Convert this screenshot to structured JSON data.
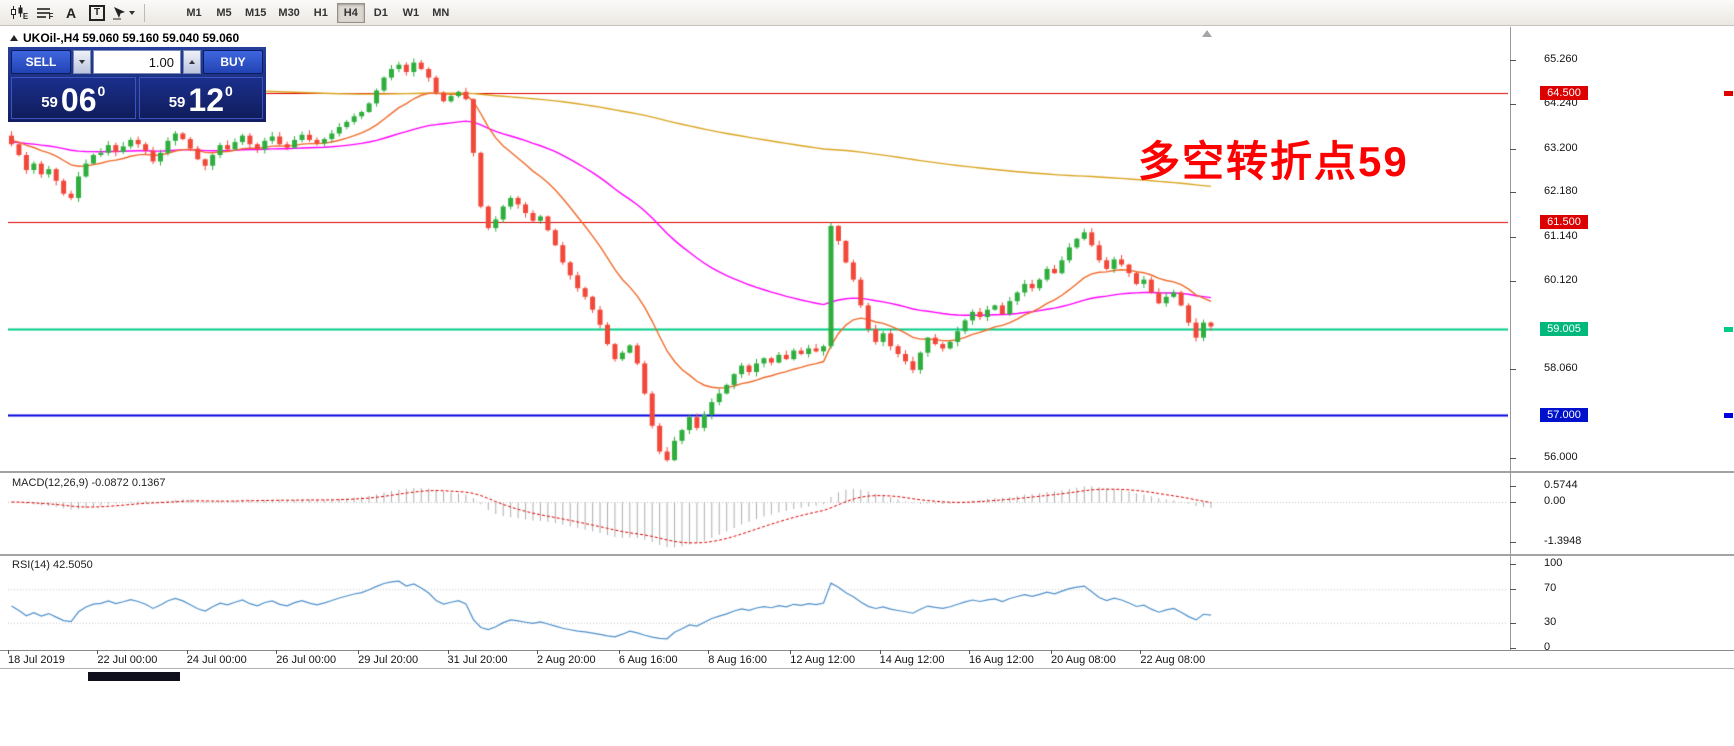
{
  "toolbar": {
    "timeframes": [
      "M1",
      "M5",
      "M15",
      "M30",
      "H1",
      "H4",
      "D1",
      "W1",
      "MN"
    ],
    "active_timeframe": "H4",
    "letters": {
      "e": "E",
      "f": "F",
      "a": "A",
      "t": "T"
    }
  },
  "chart": {
    "header": "UKOil-,H4  59.060 59.160 59.040 59.060",
    "symbol": "UKOil-",
    "timeframe": "H4",
    "annotation": {
      "text": "多空转折点59",
      "color": "#ff0000"
    },
    "trade_panel": {
      "sell_label": "SELL",
      "buy_label": "BUY",
      "volume": "1.00",
      "sell_price": {
        "small": "59",
        "big": "06",
        "sup": "0"
      },
      "buy_price": {
        "small": "59",
        "big": "12",
        "sup": "0"
      }
    }
  },
  "price_axis": {
    "labels": [
      "65.260",
      "64.240",
      "63.200",
      "62.180",
      "61.140",
      "60.120",
      "58.060",
      "56.000"
    ],
    "badges": [
      {
        "price": 64.5,
        "label": "64.500",
        "color": "#dd0000"
      },
      {
        "price": 61.5,
        "label": "61.500",
        "color": "#dd0000"
      },
      {
        "price": 59.005,
        "label": "59.005",
        "color": "#00b87c"
      },
      {
        "price": 57.0,
        "label": "57.000",
        "color": "#0011cc"
      }
    ],
    "edge_marks": [
      {
        "price": 64.5,
        "color": "#e00000"
      },
      {
        "price": 59.005,
        "color": "#00cc84"
      },
      {
        "price": 57.0,
        "color": "#0000e0"
      }
    ]
  },
  "macd_panel": {
    "label": "MACD(12,26,9) -0.0872 0.1367",
    "axis": [
      "0.5744",
      "0.00",
      "-1.3948"
    ]
  },
  "rsi_panel": {
    "label": "RSI(14) 42.5050",
    "axis": [
      "100",
      "70",
      "30",
      "0"
    ]
  },
  "time_axis": [
    {
      "i": 0,
      "t": "18 Jul 2019"
    },
    {
      "i": 12,
      "t": "22 Jul 00:00"
    },
    {
      "i": 24,
      "t": "24 Jul 00:00"
    },
    {
      "i": 36,
      "t": "26 Jul 00:00"
    },
    {
      "i": 47,
      "t": "29 Jul 20:00"
    },
    {
      "i": 59,
      "t": "31 Jul 20:00"
    },
    {
      "i": 71,
      "t": "2 Aug 20:00"
    },
    {
      "i": 82,
      "t": "6 Aug 16:00"
    },
    {
      "i": 94,
      "t": "8 Aug 16:00"
    },
    {
      "i": 105,
      "t": "12 Aug 12:00"
    },
    {
      "i": 117,
      "t": "14 Aug 12:00"
    },
    {
      "i": 129,
      "t": "16 Aug 12:00"
    },
    {
      "i": 140,
      "t": "20 Aug 08:00"
    },
    {
      "i": 152,
      "t": "22 Aug 08:00"
    }
  ],
  "chart_data": {
    "type": "candlestick",
    "symbol": "UKOil-",
    "timeframe": "H4",
    "quote": {
      "open": 59.06,
      "high": 59.16,
      "low": 59.04,
      "close": 59.06,
      "bid": 59.06,
      "ask": 59.12
    },
    "ylim": [
      55.6,
      66.0
    ],
    "first_open": 63.5,
    "closes": [
      63.3,
      63.05,
      62.7,
      62.85,
      62.6,
      62.72,
      62.45,
      62.15,
      62.05,
      62.55,
      62.85,
      63.05,
      63.1,
      63.28,
      63.12,
      63.25,
      63.4,
      63.3,
      63.15,
      62.9,
      63.1,
      63.38,
      63.55,
      63.42,
      63.2,
      62.95,
      62.8,
      63.05,
      63.28,
      63.18,
      63.35,
      63.5,
      63.3,
      63.18,
      63.38,
      63.48,
      63.3,
      63.22,
      63.4,
      63.52,
      63.4,
      63.32,
      63.42,
      63.55,
      63.7,
      63.82,
      63.95,
      64.05,
      64.25,
      64.55,
      64.85,
      65.05,
      65.15,
      64.98,
      65.2,
      65.05,
      64.85,
      64.5,
      64.3,
      64.42,
      64.52,
      64.35,
      63.1,
      61.85,
      61.35,
      61.55,
      61.85,
      62.05,
      61.9,
      61.7,
      61.52,
      61.62,
      61.3,
      60.95,
      60.55,
      60.25,
      59.95,
      59.75,
      59.45,
      59.1,
      58.65,
      58.3,
      58.45,
      58.62,
      58.2,
      57.5,
      56.75,
      56.15,
      55.95,
      56.4,
      56.65,
      56.95,
      56.7,
      57.0,
      57.3,
      57.5,
      57.7,
      57.95,
      58.15,
      58.0,
      58.2,
      58.32,
      58.22,
      58.4,
      58.3,
      58.5,
      58.42,
      58.55,
      58.48,
      58.6,
      61.4,
      61.05,
      60.55,
      60.15,
      59.55,
      59.0,
      58.7,
      58.9,
      58.6,
      58.42,
      58.25,
      58.05,
      58.45,
      58.8,
      58.65,
      58.55,
      58.7,
      58.95,
      59.2,
      59.4,
      59.28,
      59.45,
      59.55,
      59.35,
      59.65,
      59.85,
      60.05,
      59.95,
      60.15,
      60.4,
      60.3,
      60.6,
      60.9,
      61.1,
      61.25,
      60.95,
      60.6,
      60.4,
      60.62,
      60.5,
      60.3,
      60.05,
      60.15,
      59.85,
      59.6,
      59.75,
      59.85,
      59.55,
      59.15,
      58.8,
      59.15,
      59.06
    ],
    "hlines": [
      {
        "price": 64.5,
        "color": "#e00000",
        "width": 1
      },
      {
        "price": 61.5,
        "color": "#e00000",
        "width": 1
      },
      {
        "price": 59.005,
        "color": "#00cc84",
        "width": 2
      },
      {
        "price": 57.0,
        "color": "#0000e0",
        "width": 2
      }
    ],
    "mas": [
      {
        "name": "slow-ma",
        "alpha": 0.0055,
        "seed": 64.85,
        "color": "#d9a521"
      },
      {
        "name": "medium-ma",
        "alpha": 0.033,
        "seed": 63.35,
        "color": "#ff00ff"
      },
      {
        "name": "fast-ma",
        "alpha": 0.117,
        "seed": 63.4,
        "color": "#f06a2a"
      }
    ],
    "macd": {
      "fast": 12,
      "slow": 26,
      "signal": 9,
      "current_macd": -0.0872,
      "current_signal": 0.1367,
      "axis_max": 0.5744,
      "axis_min": -1.3948
    },
    "rsi": {
      "period": 14,
      "current": 42.505,
      "levels": [
        70,
        30
      ]
    },
    "up_color": "#2fae3e",
    "down_color": "#f2483a"
  }
}
